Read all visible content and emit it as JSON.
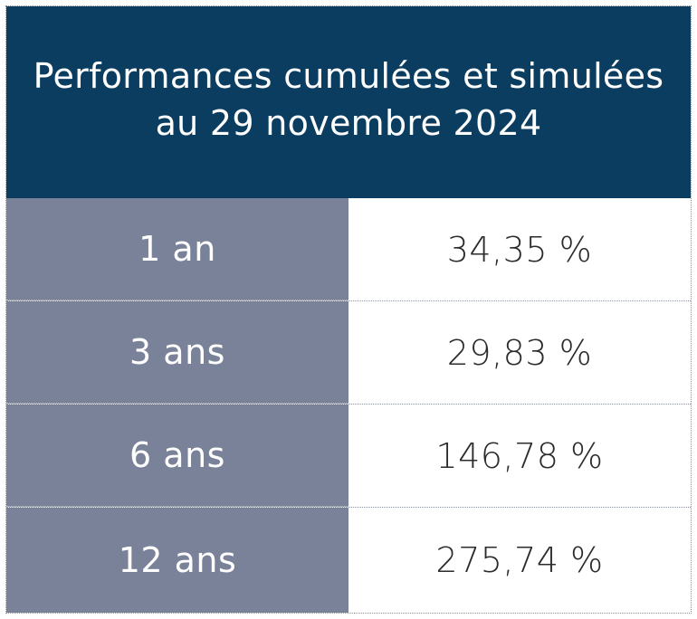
{
  "header": {
    "title_line1": "Performances cumulées et simulées",
    "title_line2": "au 29 novembre 2024"
  },
  "colors": {
    "header_bg": "#0b3d60",
    "label_bg": "#7a8299",
    "value_text": "#2b2b2b"
  },
  "rows": [
    {
      "label": "1 an",
      "value": "34,35 %"
    },
    {
      "label": "3 ans",
      "value": "29,83 %"
    },
    {
      "label": "6 ans",
      "value": "146,78 %"
    },
    {
      "label": "12 ans",
      "value": "275,74 %"
    }
  ]
}
